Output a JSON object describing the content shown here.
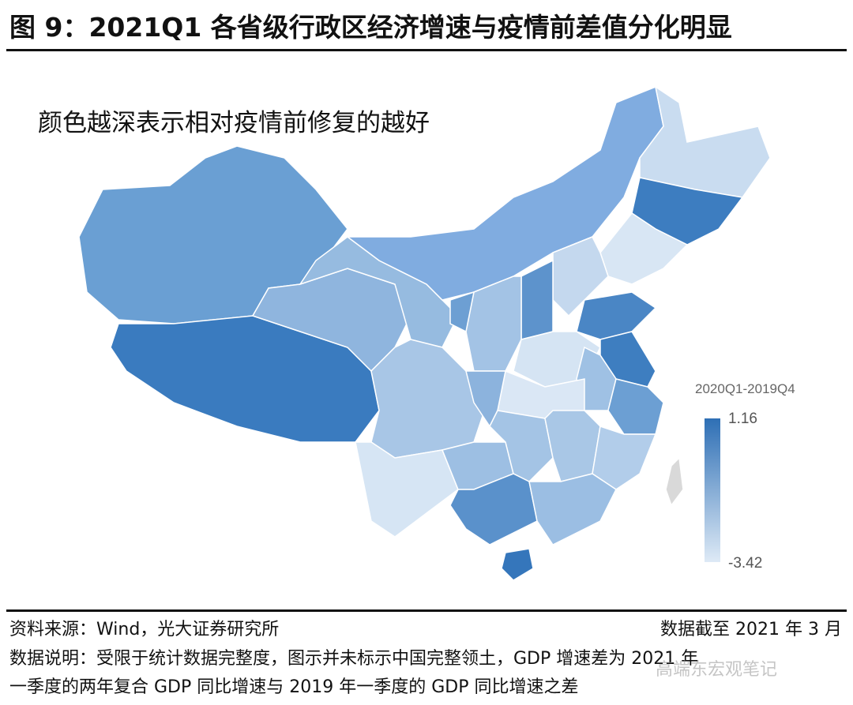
{
  "title": "图 9：2021Q1 各省级行政区经济增速与疫情前差值分化明显",
  "subtitle": "颜色越深表示相对疫情前修复的越好",
  "legend": {
    "title": "2020Q1-2019Q4",
    "max": "1.16",
    "min": "-3.42",
    "max_color": "#2e6fb5",
    "min_color": "#deeaf6"
  },
  "footer": {
    "source": "资料来源：Wind，光大证券研究所",
    "date": "数据截至 2021 年 3 月",
    "note1": "数据说明：受限于统计数据完整度，图示并未标示中国完整领土，GDP 增速差为 2021 年",
    "note2": "一季度的两年复合 GDP 同比增速与 2019 年一季度的 GDP 同比增速之差"
  },
  "watermark": "高端东宏观笔记",
  "region_colors": {
    "xinjiang": "#6a9fd3",
    "tibet": "#3a7bbf",
    "qinghai": "#8fb5de",
    "gansu": "#96bbe0",
    "inner-mongolia": "#80ace0",
    "heilongjiang": "#c9dcf0",
    "jilin": "#3d7dc0",
    "liaoning": "#d8e6f4",
    "hebei": "#c4d8ee",
    "shanxi": "#5d93cc",
    "shaanxi": "#a3c3e5",
    "ningxia": "#6d9fd3",
    "shandong": "#4a86c5",
    "henan": "#d5e4f3",
    "jiangsu": "#3e7ec0",
    "anhui": "#9fc1e4",
    "hubei": "#dae7f5",
    "sichuan": "#a8c6e6",
    "chongqing": "#8cb3dd",
    "yunnan": "#d6e5f4",
    "guizhou": "#9dbfe3",
    "hunan": "#a4c4e5",
    "jiangxi": "#a9c7e6",
    "zhejiang": "#6c9fd3",
    "fujian": "#b2cdea",
    "guangxi": "#5a91cb",
    "guangdong": "#9bbee3",
    "hainan": "#3576bb",
    "taiwan": "#d9d9d9"
  }
}
